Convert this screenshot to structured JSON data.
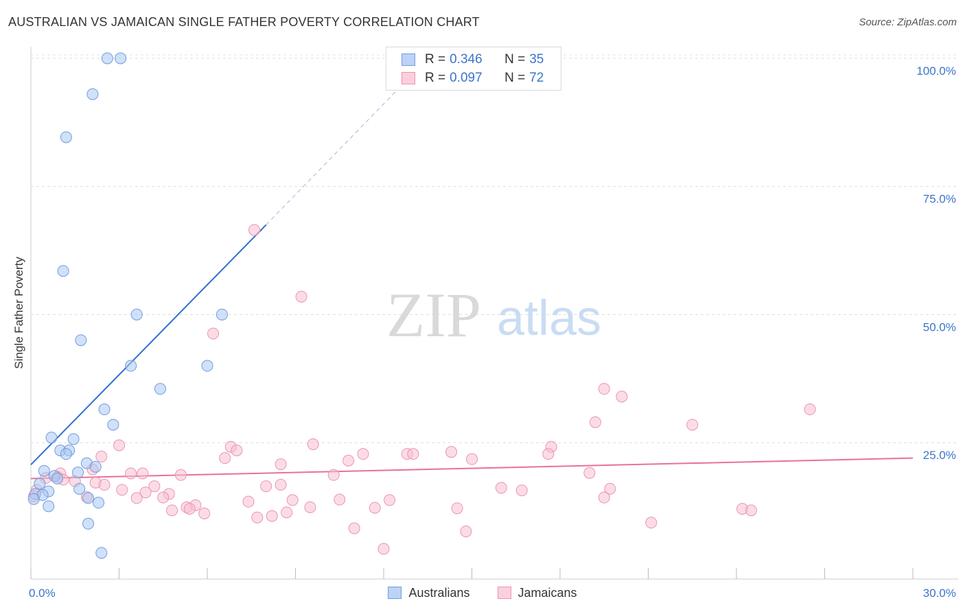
{
  "title": "AUSTRALIAN VS JAMAICAN SINGLE FATHER POVERTY CORRELATION CHART",
  "source": "Source: ZipAtlas.com",
  "watermark": {
    "zip": "ZIP",
    "atlas": "atlas"
  },
  "colors": {
    "australians_fill": "#a9c8f2",
    "australians_stroke": "#6e9be0",
    "australians_line": "#2f6fd0",
    "jamaicans_fill": "#f8bfd0",
    "jamaicans_stroke": "#ec93b0",
    "jamaicans_line": "#e8709a",
    "tick_label": "#3b74c9",
    "grid": "#dddddd"
  },
  "legend_top": {
    "rows": [
      {
        "r_label": "R =",
        "r_value": "0.346",
        "n_label": "N =",
        "n_value": "35"
      },
      {
        "r_label": "R =",
        "r_value": "0.097",
        "n_label": "N =",
        "n_value": "72"
      }
    ]
  },
  "legend_bottom": [
    "Australians",
    "Jamaicans"
  ],
  "chart_data": {
    "type": "scatter",
    "title": "AUSTRALIAN VS JAMAICAN SINGLE FATHER POVERTY CORRELATION CHART",
    "xlabel": "",
    "ylabel": "Single Father Poverty",
    "xlim": [
      0,
      30
    ],
    "ylim": [
      0,
      102
    ],
    "x_tick_labels": [
      {
        "value": 0,
        "label": "0.0%"
      },
      {
        "value": 30,
        "label": "30.0%"
      }
    ],
    "y_tick_labels": [
      {
        "value": 25,
        "label": "25.0%"
      },
      {
        "value": 50,
        "label": "50.0%"
      },
      {
        "value": 75,
        "label": "75.0%"
      },
      {
        "value": 100,
        "label": "100.0%"
      }
    ],
    "y_grid": [
      25,
      50,
      75,
      100
    ],
    "series": [
      {
        "name": "Australians",
        "r": 0.346,
        "n": 35,
        "trend": {
          "x0": 0.0,
          "y0": 20.7,
          "x1": 8.0,
          "y1": 67.5,
          "dash_to_x": 13.0,
          "dash_to_y": 97.0
        },
        "points": [
          [
            2.6,
            100.0
          ],
          [
            3.05,
            100.0
          ],
          [
            2.1,
            93.0
          ],
          [
            1.2,
            84.6
          ],
          [
            1.1,
            58.5
          ],
          [
            3.6,
            50.0
          ],
          [
            6.5,
            50.0
          ],
          [
            1.7,
            45.0
          ],
          [
            3.4,
            40.0
          ],
          [
            6.0,
            40.0
          ],
          [
            4.4,
            35.5
          ],
          [
            2.5,
            31.5
          ],
          [
            2.8,
            28.5
          ],
          [
            0.7,
            26.0
          ],
          [
            1.45,
            25.7
          ],
          [
            1.0,
            23.5
          ],
          [
            1.3,
            23.5
          ],
          [
            1.2,
            22.8
          ],
          [
            1.9,
            21.0
          ],
          [
            2.2,
            20.3
          ],
          [
            0.45,
            19.5
          ],
          [
            1.6,
            19.2
          ],
          [
            0.8,
            18.5
          ],
          [
            0.9,
            18.0
          ],
          [
            0.3,
            17.0
          ],
          [
            0.6,
            15.5
          ],
          [
            1.65,
            16.0
          ],
          [
            0.15,
            15.0
          ],
          [
            0.4,
            14.8
          ],
          [
            1.95,
            14.2
          ],
          [
            0.1,
            14.0
          ],
          [
            2.3,
            13.3
          ],
          [
            0.6,
            12.6
          ],
          [
            1.95,
            9.2
          ],
          [
            2.4,
            3.5
          ]
        ]
      },
      {
        "name": "Jamaicans",
        "r": 0.097,
        "n": 72,
        "trend": {
          "x0": 0.0,
          "y0": 18.0,
          "x1": 30.0,
          "y1": 22.0
        },
        "points": [
          [
            7.6,
            66.5
          ],
          [
            9.2,
            53.5
          ],
          [
            6.2,
            46.3
          ],
          [
            19.5,
            35.5
          ],
          [
            20.1,
            34.0
          ],
          [
            26.5,
            31.5
          ],
          [
            22.5,
            28.5
          ],
          [
            19.2,
            29.0
          ],
          [
            3.0,
            24.5
          ],
          [
            6.8,
            24.2
          ],
          [
            9.6,
            24.7
          ],
          [
            17.7,
            24.2
          ],
          [
            7.0,
            23.5
          ],
          [
            14.3,
            23.2
          ],
          [
            11.3,
            22.8
          ],
          [
            12.8,
            22.8
          ],
          [
            13.0,
            22.8
          ],
          [
            17.6,
            22.8
          ],
          [
            2.4,
            22.3
          ],
          [
            6.6,
            22.0
          ],
          [
            15.0,
            21.8
          ],
          [
            10.8,
            21.5
          ],
          [
            8.5,
            20.8
          ],
          [
            2.1,
            19.8
          ],
          [
            1.0,
            19.0
          ],
          [
            3.4,
            19.0
          ],
          [
            3.8,
            19.0
          ],
          [
            5.1,
            18.7
          ],
          [
            19.0,
            19.1
          ],
          [
            10.3,
            18.7
          ],
          [
            0.5,
            18.1
          ],
          [
            0.9,
            18.3
          ],
          [
            1.1,
            17.8
          ],
          [
            1.5,
            17.5
          ],
          [
            2.2,
            17.2
          ],
          [
            2.5,
            16.8
          ],
          [
            4.2,
            16.5
          ],
          [
            8.0,
            16.5
          ],
          [
            8.5,
            16.8
          ],
          [
            16.0,
            16.2
          ],
          [
            16.7,
            15.7
          ],
          [
            19.7,
            16.0
          ],
          [
            3.1,
            15.8
          ],
          [
            0.2,
            15.8
          ],
          [
            3.9,
            15.3
          ],
          [
            4.7,
            15.0
          ],
          [
            4.5,
            14.3
          ],
          [
            3.6,
            14.2
          ],
          [
            1.9,
            14.4
          ],
          [
            19.5,
            14.3
          ],
          [
            7.4,
            13.5
          ],
          [
            8.9,
            13.8
          ],
          [
            10.5,
            13.9
          ],
          [
            12.2,
            13.8
          ],
          [
            11.7,
            12.3
          ],
          [
            9.5,
            12.4
          ],
          [
            5.6,
            12.8
          ],
          [
            5.3,
            12.4
          ],
          [
            5.4,
            12.1
          ],
          [
            4.8,
            11.8
          ],
          [
            14.5,
            12.2
          ],
          [
            5.9,
            11.2
          ],
          [
            8.2,
            10.7
          ],
          [
            8.7,
            11.4
          ],
          [
            24.2,
            12.1
          ],
          [
            24.5,
            11.8
          ],
          [
            7.7,
            10.4
          ],
          [
            21.1,
            9.4
          ],
          [
            11.0,
            8.3
          ],
          [
            14.8,
            7.7
          ],
          [
            12.0,
            4.3
          ],
          [
            0.1,
            14.5
          ]
        ]
      }
    ]
  }
}
